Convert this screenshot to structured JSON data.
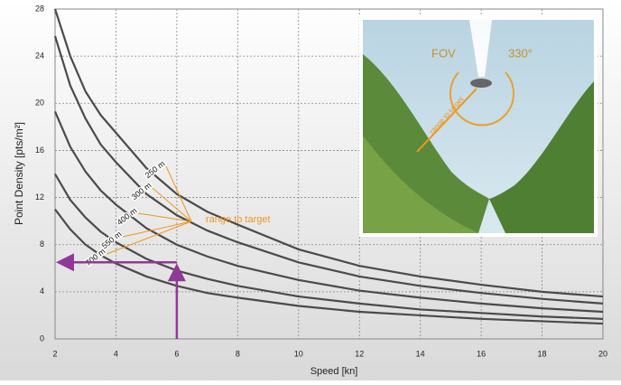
{
  "chart_data": {
    "type": "line",
    "x_label": "Speed [kn]",
    "y_label": "Point Density [pts/m²]",
    "x": [
      2,
      2.5,
      3,
      3.5,
      4,
      5,
      6,
      7,
      8,
      10,
      12,
      14,
      16,
      18,
      20
    ],
    "series": [
      {
        "name": "250 m",
        "color": "#4a4a4a",
        "values": [
          28,
          24,
          21,
          19,
          17.5,
          14.5,
          12.3,
          10.8,
          9.7,
          7.6,
          6.2,
          5.3,
          4.6,
          4.0,
          3.6
        ]
      },
      {
        "name": "300 m",
        "color": "#4a4a4a",
        "values": [
          25.7,
          21.5,
          18.7,
          16.5,
          15,
          12.3,
          10.5,
          9.2,
          8.2,
          6.5,
          5.3,
          4.5,
          3.9,
          3.4,
          3.0
        ]
      },
      {
        "name": "400 m",
        "color": "#4a4a4a",
        "values": [
          19.3,
          16.3,
          14.2,
          12.6,
          11.4,
          9.4,
          8.0,
          7.0,
          6.2,
          5.0,
          4.1,
          3.5,
          3.0,
          2.6,
          2.3
        ]
      },
      {
        "name": "550 m",
        "color": "#4a4a4a",
        "values": [
          14,
          11.8,
          10.3,
          9.1,
          8.2,
          6.8,
          5.8,
          5.1,
          4.5,
          3.6,
          3.0,
          2.5,
          2.2,
          1.9,
          1.7
        ]
      },
      {
        "name": "700 m",
        "color": "#4a4a4a",
        "values": [
          11,
          9.3,
          8.0,
          7.1,
          6.4,
          5.3,
          4.5,
          3.9,
          3.5,
          2.8,
          2.3,
          2.0,
          1.7,
          1.5,
          1.3
        ]
      }
    ],
    "xlim": [
      2,
      20
    ],
    "ylim": [
      0,
      28
    ],
    "xticks": [
      2,
      4,
      6,
      8,
      10,
      12,
      14,
      16,
      18,
      20
    ],
    "yticks": [
      0,
      4,
      8,
      12,
      16,
      20,
      24,
      28
    ],
    "grid": true,
    "annotation": {
      "text": "range to target",
      "color": "#f0961e"
    },
    "reading": {
      "speed": 6,
      "density": 6.5,
      "color": "#8e3a96"
    },
    "inset": {
      "fov": "FOV",
      "angle": "330°",
      "range": "range to target"
    }
  }
}
